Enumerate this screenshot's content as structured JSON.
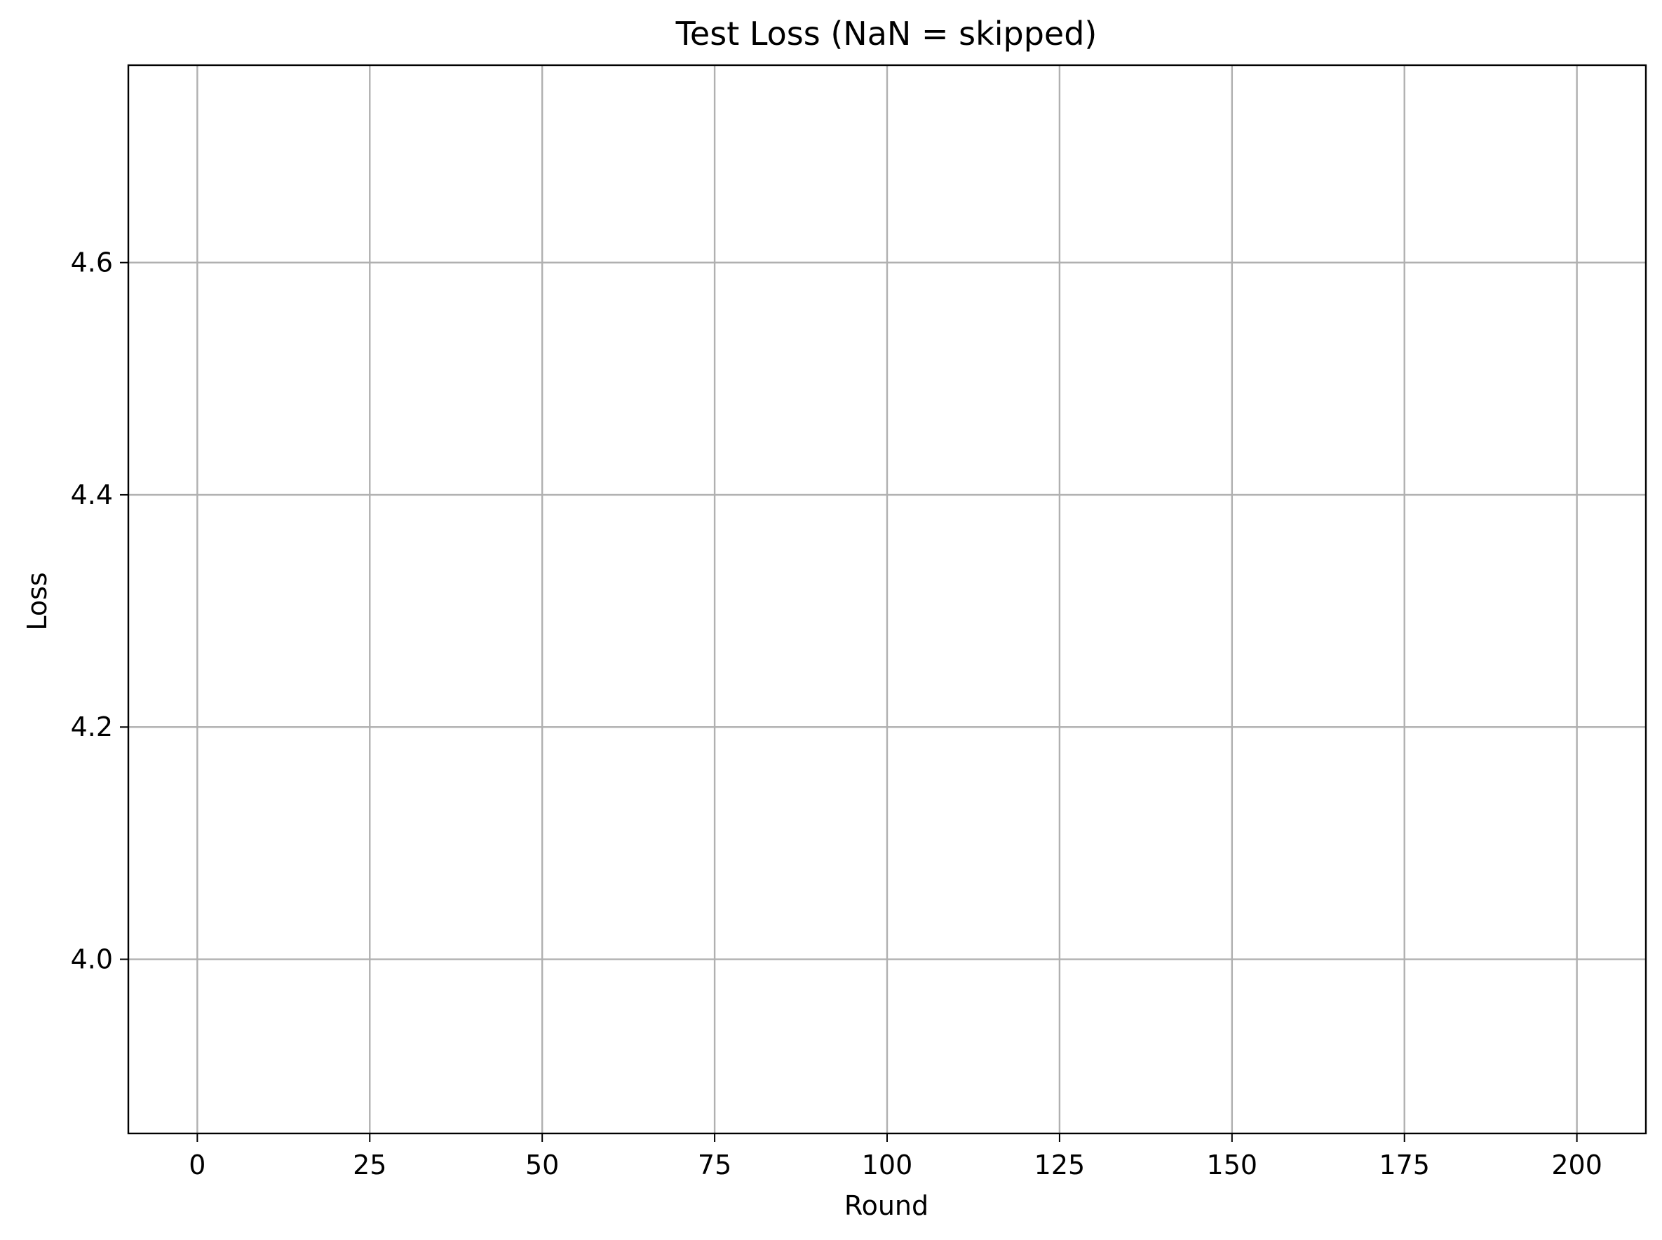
{
  "chart_data": {
    "type": "line",
    "title": "Test Loss (NaN = skipped)",
    "xlabel": "Round",
    "ylabel": "Loss",
    "xlim": [
      -10,
      210
    ],
    "ylim": [
      3.85,
      4.77
    ],
    "x_ticks": [
      0,
      25,
      50,
      75,
      100,
      125,
      150,
      175,
      200
    ],
    "x_tick_labels": [
      "0",
      "25",
      "50",
      "75",
      "100",
      "125",
      "150",
      "175",
      "200"
    ],
    "y_ticks": [
      4.0,
      4.2,
      4.4,
      4.6
    ],
    "y_tick_labels": [
      "4.0",
      "4.2",
      "4.4",
      "4.6"
    ],
    "grid": true,
    "series": [],
    "colors": {
      "grid": "#b0b0b0",
      "frame": "#000000",
      "background": "#ffffff"
    }
  }
}
